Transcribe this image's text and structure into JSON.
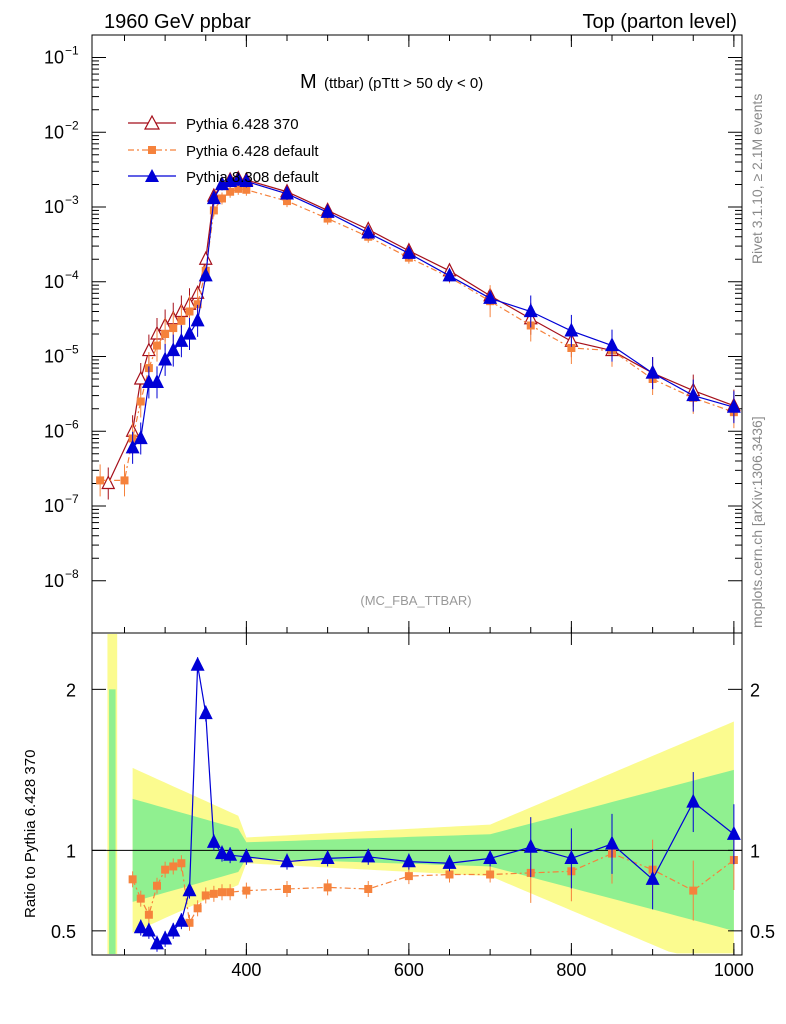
{
  "header": {
    "left": "1960 GeV ppbar",
    "right": "Top (parton level)"
  },
  "side": {
    "rivet": "Rivet 3.1.10, ≥ 2.1M events",
    "mcplots": "mcplots.cern.ch [arXiv:1306.3436]"
  },
  "chart_data": [
    {
      "type": "line",
      "title": "M",
      "subtitle": "(ttbar) (pTtt > 50 dy < 0)",
      "annotation": "(MC_FBA_TTBAR)",
      "xlim": [
        210,
        1010
      ],
      "ylim": [
        2e-09,
        0.2
      ],
      "yscale": "log",
      "y_ticks": [
        "10^-8",
        "10^-7",
        "10^-6",
        "10^-5",
        "10^-4",
        "10^-3",
        "10^-2",
        "10^-1"
      ],
      "legend_position": "top-left",
      "colors": {
        "s370": "#a50f1a",
        "default": "#f5823c",
        "p8": "#0000d6"
      },
      "series": [
        {
          "name": "Pythia 6.428 370",
          "x": [
            230,
            260,
            270,
            280,
            290,
            300,
            310,
            320,
            330,
            340,
            350,
            360,
            370,
            380,
            390,
            400,
            450,
            500,
            550,
            600,
            650,
            700,
            750,
            800,
            850,
            900,
            950,
            1000
          ],
          "y": [
            2e-07,
            1e-06,
            5e-06,
            1.2e-05,
            2e-05,
            2.6e-05,
            3.2e-05,
            4e-05,
            5e-05,
            7e-05,
            0.0002,
            0.0014,
            0.002,
            0.0023,
            0.0024,
            0.0023,
            0.0016,
            0.0009,
            0.0005,
            0.00026,
            0.00014,
            6.5e-05,
            3.2e-05,
            1.6e-05,
            1.2e-05,
            6e-06,
            3.5e-06,
            2.2e-06
          ]
        },
        {
          "name": "Pythia 6.428 default",
          "x": [
            220,
            250,
            260,
            270,
            280,
            290,
            300,
            310,
            320,
            330,
            340,
            350,
            360,
            370,
            380,
            390,
            400,
            450,
            500,
            550,
            600,
            650,
            700,
            750,
            800,
            850,
            900,
            950,
            1000
          ],
          "y": [
            2.2e-07,
            2.2e-07,
            8e-07,
            2.5e-06,
            7e-06,
            1.4e-05,
            2e-05,
            2.4e-05,
            3e-05,
            4e-05,
            5e-05,
            0.00014,
            0.0009,
            0.0013,
            0.0016,
            0.00175,
            0.0017,
            0.0012,
            0.0007,
            0.0004,
            0.00021,
            0.000115,
            5.5e-05,
            2.6e-05,
            1.3e-05,
            1.2e-05,
            5e-06,
            2.8e-06,
            1.8e-06
          ]
        },
        {
          "name": "Pythia 8.308 default",
          "x": [
            260,
            270,
            280,
            290,
            300,
            310,
            320,
            330,
            340,
            350,
            360,
            370,
            380,
            390,
            400,
            450,
            500,
            550,
            600,
            650,
            700,
            750,
            800,
            850,
            900,
            950,
            1000
          ],
          "y": [
            6e-07,
            8e-07,
            4.5e-06,
            4.5e-06,
            9e-06,
            1.2e-05,
            1.6e-05,
            2e-05,
            3e-05,
            0.00012,
            0.0013,
            0.002,
            0.0022,
            0.0023,
            0.0022,
            0.0015,
            0.00085,
            0.00045,
            0.00024,
            0.00012,
            6e-05,
            4e-05,
            2.2e-05,
            1.4e-05,
            6e-06,
            3e-06,
            2.1e-06
          ]
        }
      ]
    },
    {
      "type": "line",
      "ylabel": "Ratio to Pythia 6.428 370",
      "xlim": [
        210,
        1010
      ],
      "ylim": [
        0.35,
        2.35
      ],
      "x_ticks": [
        400,
        600,
        800,
        1000
      ],
      "y_ticks": [
        0.5,
        1,
        2
      ],
      "bands": [
        {
          "name": "stat-inner",
          "color": "#90f090"
        },
        {
          "name": "stat-outer",
          "color": "#fbfb8f"
        }
      ],
      "series": [
        {
          "name": "Pythia 6.428 default",
          "x": [
            260,
            270,
            280,
            290,
            300,
            310,
            320,
            330,
            340,
            350,
            360,
            370,
            380,
            400,
            450,
            500,
            550,
            600,
            650,
            700,
            750,
            800,
            850,
            900,
            950,
            1000
          ],
          "y": [
            0.82,
            0.7,
            0.6,
            0.78,
            0.88,
            0.9,
            0.92,
            0.55,
            0.64,
            0.72,
            0.73,
            0.74,
            0.74,
            0.75,
            0.76,
            0.77,
            0.76,
            0.84,
            0.85,
            0.85,
            0.86,
            0.87,
            0.98,
            0.88,
            0.75,
            0.94
          ]
        },
        {
          "name": "Pythia 8.308 default",
          "x": [
            270,
            280,
            290,
            300,
            310,
            320,
            330,
            340,
            350,
            360,
            370,
            380,
            400,
            450,
            500,
            550,
            600,
            650,
            700,
            750,
            800,
            850,
            900,
            950,
            1000
          ],
          "y": [
            0.52,
            0.5,
            0.42,
            0.45,
            0.5,
            0.56,
            0.75,
            2.15,
            1.85,
            1.05,
            0.98,
            0.97,
            0.96,
            0.93,
            0.95,
            0.96,
            0.93,
            0.92,
            0.95,
            1.02,
            0.95,
            1.04,
            0.82,
            1.3,
            1.1
          ]
        }
      ]
    }
  ]
}
